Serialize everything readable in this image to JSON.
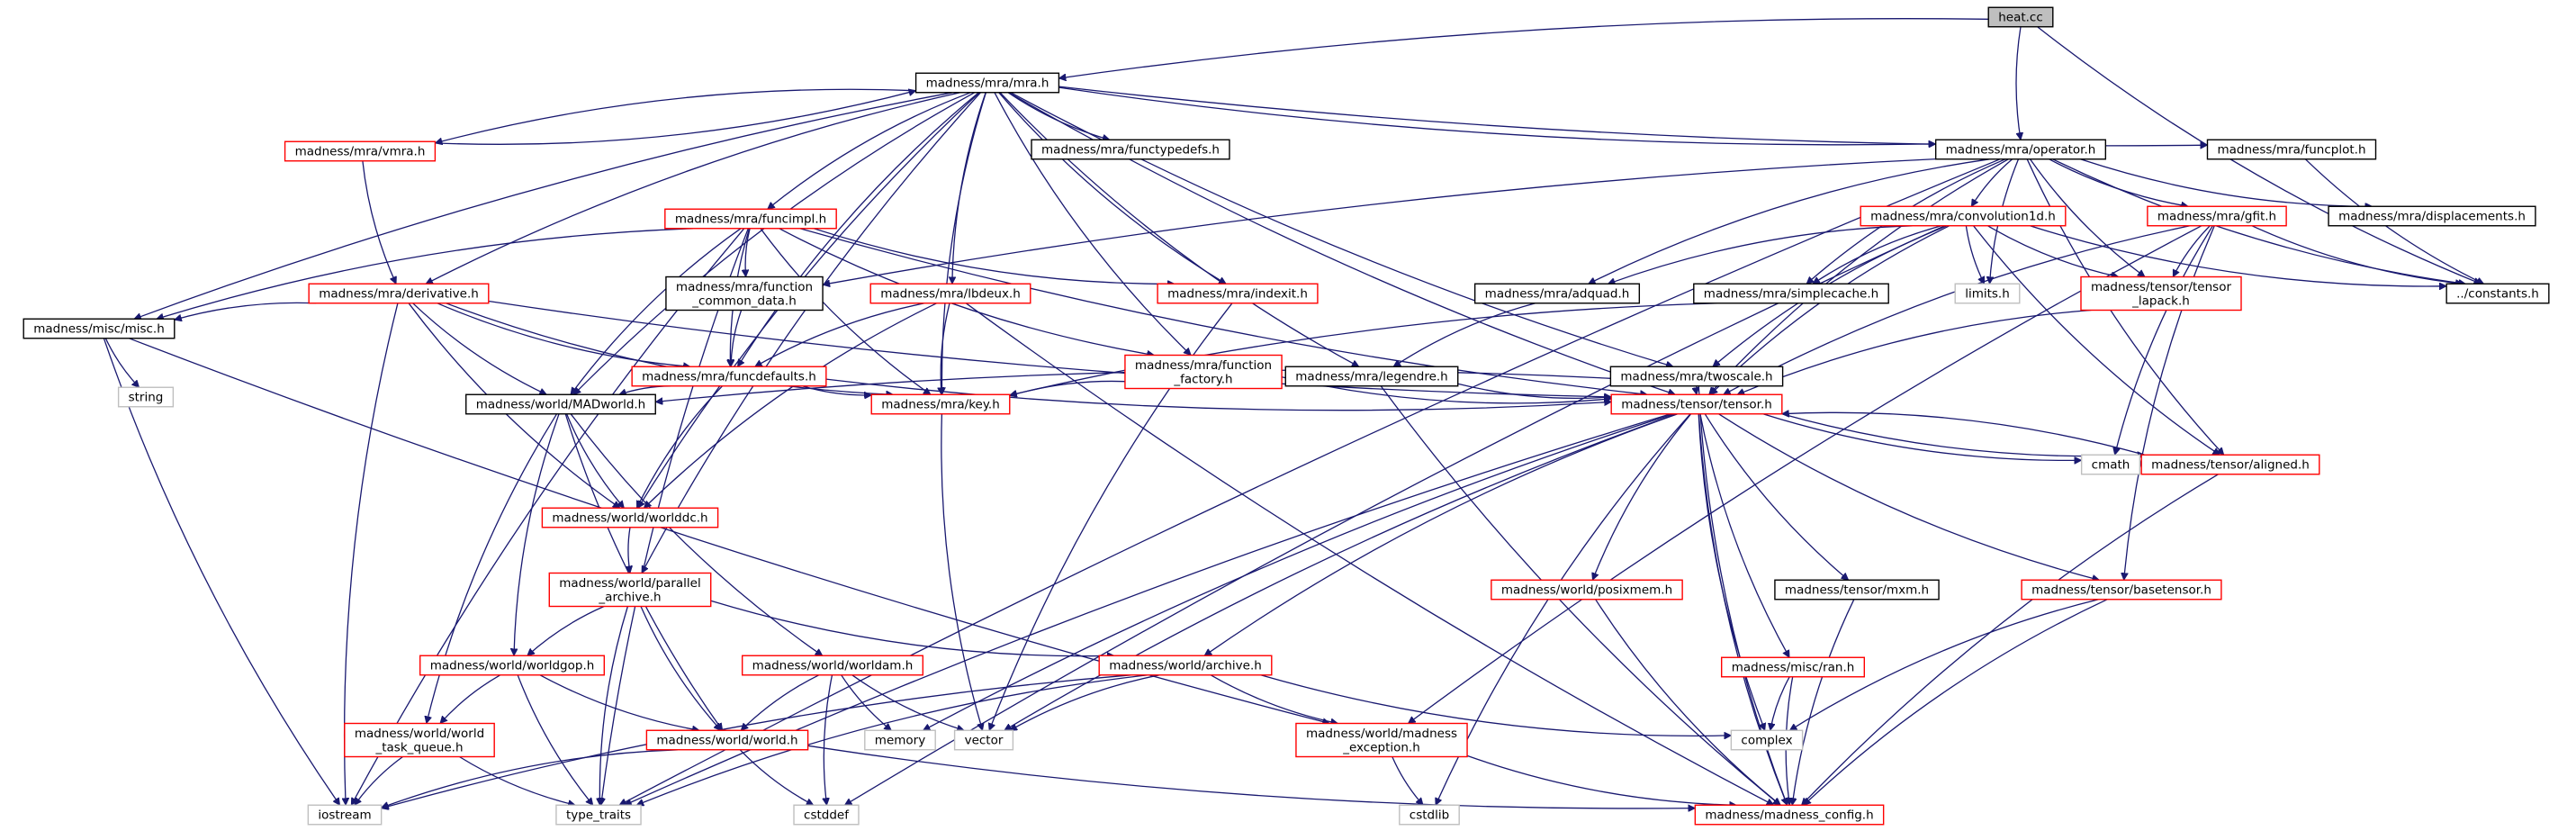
{
  "graph": {
    "nodes": [
      {
        "id": "heat",
        "lines": [
          "heat.cc"
        ],
        "kind": "root"
      },
      {
        "id": "mra",
        "lines": [
          "madness/mra/mra.h"
        ],
        "kind": "doc"
      },
      {
        "id": "vmra",
        "lines": [
          "madness/mra/vmra.h"
        ],
        "kind": "trunc"
      },
      {
        "id": "functypedefs",
        "lines": [
          "madness/mra/functypedefs.h"
        ],
        "kind": "doc"
      },
      {
        "id": "operator",
        "lines": [
          "madness/mra/operator.h"
        ],
        "kind": "doc"
      },
      {
        "id": "funcplot",
        "lines": [
          "madness/mra/funcplot.h"
        ],
        "kind": "doc"
      },
      {
        "id": "funcimpl",
        "lines": [
          "madness/mra/funcimpl.h"
        ],
        "kind": "trunc"
      },
      {
        "id": "convolution1d",
        "lines": [
          "madness/mra/convolution1d.h"
        ],
        "kind": "trunc"
      },
      {
        "id": "gfit",
        "lines": [
          "madness/mra/gfit.h"
        ],
        "kind": "trunc"
      },
      {
        "id": "displacements",
        "lines": [
          "madness/mra/displacements.h"
        ],
        "kind": "doc"
      },
      {
        "id": "derivative",
        "lines": [
          "madness/mra/derivative.h"
        ],
        "kind": "trunc"
      },
      {
        "id": "fcd",
        "lines": [
          "madness/mra/function",
          "_common_data.h"
        ],
        "kind": "doc"
      },
      {
        "id": "lbdeux",
        "lines": [
          "madness/mra/lbdeux.h"
        ],
        "kind": "trunc"
      },
      {
        "id": "indexit",
        "lines": [
          "madness/mra/indexit.h"
        ],
        "kind": "trunc"
      },
      {
        "id": "adquad",
        "lines": [
          "madness/mra/adquad.h"
        ],
        "kind": "doc"
      },
      {
        "id": "simplecache",
        "lines": [
          "madness/mra/simplecache.h"
        ],
        "kind": "doc"
      },
      {
        "id": "limits",
        "lines": [
          "limits.h"
        ],
        "kind": "sys"
      },
      {
        "id": "tlapack",
        "lines": [
          "madness/tensor/tensor",
          "_lapack.h"
        ],
        "kind": "trunc"
      },
      {
        "id": "constants",
        "lines": [
          "../constants.h"
        ],
        "kind": "doc"
      },
      {
        "id": "misc",
        "lines": [
          "madness/misc/misc.h"
        ],
        "kind": "doc"
      },
      {
        "id": "funcdefaults",
        "lines": [
          "madness/mra/funcdefaults.h"
        ],
        "kind": "trunc"
      },
      {
        "id": "ffactory",
        "lines": [
          "madness/mra/function",
          "_factory.h"
        ],
        "kind": "trunc"
      },
      {
        "id": "legendre",
        "lines": [
          "madness/mra/legendre.h"
        ],
        "kind": "doc"
      },
      {
        "id": "twoscale",
        "lines": [
          "madness/mra/twoscale.h"
        ],
        "kind": "doc"
      },
      {
        "id": "string",
        "lines": [
          "string"
        ],
        "kind": "sys"
      },
      {
        "id": "madworld",
        "lines": [
          "madness/world/MADworld.h"
        ],
        "kind": "doc"
      },
      {
        "id": "key",
        "lines": [
          "madness/mra/key.h"
        ],
        "kind": "trunc"
      },
      {
        "id": "tensor",
        "lines": [
          "madness/tensor/tensor.h"
        ],
        "kind": "trunc"
      },
      {
        "id": "cmath",
        "lines": [
          "cmath"
        ],
        "kind": "sys"
      },
      {
        "id": "aligned",
        "lines": [
          "madness/tensor/aligned.h"
        ],
        "kind": "trunc"
      },
      {
        "id": "worlddc",
        "lines": [
          "madness/world/worlddc.h"
        ],
        "kind": "trunc"
      },
      {
        "id": "parchive",
        "lines": [
          "madness/world/parallel",
          "_archive.h"
        ],
        "kind": "trunc"
      },
      {
        "id": "posixmem",
        "lines": [
          "madness/world/posixmem.h"
        ],
        "kind": "trunc"
      },
      {
        "id": "mxm",
        "lines": [
          "madness/tensor/mxm.h"
        ],
        "kind": "doc"
      },
      {
        "id": "basetensor",
        "lines": [
          "madness/tensor/basetensor.h"
        ],
        "kind": "trunc"
      },
      {
        "id": "worldgop",
        "lines": [
          "madness/world/worldgop.h"
        ],
        "kind": "trunc"
      },
      {
        "id": "worldam",
        "lines": [
          "madness/world/worldam.h"
        ],
        "kind": "trunc"
      },
      {
        "id": "archive",
        "lines": [
          "madness/world/archive.h"
        ],
        "kind": "trunc"
      },
      {
        "id": "ran",
        "lines": [
          "madness/misc/ran.h"
        ],
        "kind": "trunc"
      },
      {
        "id": "wtq",
        "lines": [
          "madness/world/world",
          "_task_queue.h"
        ],
        "kind": "trunc"
      },
      {
        "id": "world",
        "lines": [
          "madness/world/world.h"
        ],
        "kind": "trunc"
      },
      {
        "id": "memory",
        "lines": [
          "memory"
        ],
        "kind": "sys"
      },
      {
        "id": "vector",
        "lines": [
          "vector"
        ],
        "kind": "sys"
      },
      {
        "id": "mexc",
        "lines": [
          "madness/world/madness",
          "_exception.h"
        ],
        "kind": "trunc"
      },
      {
        "id": "complex",
        "lines": [
          "complex"
        ],
        "kind": "sys"
      },
      {
        "id": "iostream",
        "lines": [
          "iostream"
        ],
        "kind": "sys"
      },
      {
        "id": "typetraits",
        "lines": [
          "type_traits"
        ],
        "kind": "sys"
      },
      {
        "id": "cstddef",
        "lines": [
          "cstddef"
        ],
        "kind": "sys"
      },
      {
        "id": "cstdlib",
        "lines": [
          "cstdlib"
        ],
        "kind": "sys"
      },
      {
        "id": "mconfig",
        "lines": [
          "madness/madness_config.h"
        ],
        "kind": "trunc"
      }
    ],
    "edges": [
      [
        "heat",
        "mra"
      ],
      [
        "heat",
        "operator"
      ],
      [
        "heat",
        "constants"
      ],
      [
        "mra",
        "vmra"
      ],
      [
        "mra",
        "functypedefs"
      ],
      [
        "mra",
        "operator"
      ],
      [
        "mra",
        "funcplot"
      ],
      [
        "mra",
        "funcimpl"
      ],
      [
        "mra",
        "derivative"
      ],
      [
        "mra",
        "lbdeux"
      ],
      [
        "mra",
        "indexit"
      ],
      [
        "mra",
        "misc"
      ],
      [
        "mra",
        "funcdefaults"
      ],
      [
        "mra",
        "ffactory"
      ],
      [
        "mra",
        "legendre"
      ],
      [
        "mra",
        "twoscale"
      ],
      [
        "mra",
        "madworld"
      ],
      [
        "mra",
        "key"
      ],
      [
        "mra",
        "tensor"
      ],
      [
        "mra",
        "worlddc"
      ],
      [
        "mra",
        "parchive"
      ],
      [
        "vmra",
        "mra"
      ],
      [
        "vmra",
        "derivative"
      ],
      [
        "funcplot",
        "constants"
      ],
      [
        "operator",
        "fcd"
      ],
      [
        "operator",
        "convolution1d"
      ],
      [
        "operator",
        "gfit"
      ],
      [
        "operator",
        "displacements"
      ],
      [
        "operator",
        "adquad"
      ],
      [
        "operator",
        "simplecache"
      ],
      [
        "operator",
        "limits"
      ],
      [
        "operator",
        "tlapack"
      ],
      [
        "operator",
        "constants"
      ],
      [
        "operator",
        "aligned"
      ],
      [
        "operator",
        "typetraits"
      ],
      [
        "operator",
        "tensor"
      ],
      [
        "funcimpl",
        "fcd"
      ],
      [
        "funcimpl",
        "funcdefaults"
      ],
      [
        "funcimpl",
        "ffactory"
      ],
      [
        "funcimpl",
        "indexit"
      ],
      [
        "funcimpl",
        "misc"
      ],
      [
        "funcimpl",
        "madworld"
      ],
      [
        "funcimpl",
        "key"
      ],
      [
        "funcimpl",
        "tensor"
      ],
      [
        "funcimpl",
        "iostream"
      ],
      [
        "funcimpl",
        "typetraits"
      ],
      [
        "convolution1d",
        "adquad"
      ],
      [
        "convolution1d",
        "simplecache"
      ],
      [
        "convolution1d",
        "limits"
      ],
      [
        "convolution1d",
        "tlapack"
      ],
      [
        "convolution1d",
        "constants"
      ],
      [
        "convolution1d",
        "twoscale"
      ],
      [
        "convolution1d",
        "tensor"
      ],
      [
        "convolution1d",
        "aligned"
      ],
      [
        "convolution1d",
        "cstddef"
      ],
      [
        "gfit",
        "tlapack"
      ],
      [
        "gfit",
        "constants"
      ],
      [
        "gfit",
        "tensor"
      ],
      [
        "gfit",
        "cmath"
      ],
      [
        "gfit",
        "mexc"
      ],
      [
        "gfit",
        "basetensor"
      ],
      [
        "derivative",
        "misc"
      ],
      [
        "derivative",
        "funcdefaults"
      ],
      [
        "derivative",
        "madworld"
      ],
      [
        "derivative",
        "key"
      ],
      [
        "derivative",
        "worlddc"
      ],
      [
        "derivative",
        "tensor"
      ],
      [
        "derivative",
        "iostream"
      ],
      [
        "fcd",
        "funcdefaults"
      ],
      [
        "lbdeux",
        "funcdefaults"
      ],
      [
        "lbdeux",
        "key"
      ],
      [
        "lbdeux",
        "worlddc"
      ],
      [
        "lbdeux",
        "mconfig"
      ],
      [
        "indexit",
        "vector"
      ],
      [
        "adquad",
        "legendre"
      ],
      [
        "simplecache",
        "key"
      ],
      [
        "tlapack",
        "tensor"
      ],
      [
        "misc",
        "string"
      ],
      [
        "misc",
        "iostream"
      ],
      [
        "misc",
        "mexc"
      ],
      [
        "funcdefaults",
        "madworld"
      ],
      [
        "funcdefaults",
        "tensor"
      ],
      [
        "funcdefaults",
        "key"
      ],
      [
        "funcdefaults",
        "worlddc"
      ],
      [
        "ffactory",
        "key"
      ],
      [
        "ffactory",
        "tensor"
      ],
      [
        "legendre",
        "tensor"
      ],
      [
        "legendre",
        "mconfig"
      ],
      [
        "twoscale",
        "tensor"
      ],
      [
        "twoscale",
        "madworld"
      ],
      [
        "twoscale",
        "mconfig"
      ],
      [
        "madworld",
        "worlddc"
      ],
      [
        "madworld",
        "worldgop"
      ],
      [
        "madworld",
        "worldam"
      ],
      [
        "madworld",
        "world"
      ],
      [
        "madworld",
        "wtq"
      ],
      [
        "key",
        "vector"
      ],
      [
        "tensor",
        "cmath"
      ],
      [
        "tensor",
        "aligned"
      ],
      [
        "tensor",
        "posixmem"
      ],
      [
        "tensor",
        "mxm"
      ],
      [
        "tensor",
        "basetensor"
      ],
      [
        "tensor",
        "archive"
      ],
      [
        "tensor",
        "ran"
      ],
      [
        "tensor",
        "memory"
      ],
      [
        "tensor",
        "vector"
      ],
      [
        "tensor",
        "complex"
      ],
      [
        "tensor",
        "mconfig"
      ],
      [
        "tensor",
        "typetraits"
      ],
      [
        "tensor",
        "cstdlib"
      ],
      [
        "aligned",
        "tensor"
      ],
      [
        "aligned",
        "mconfig"
      ],
      [
        "worlddc",
        "parchive"
      ],
      [
        "parchive",
        "worldgop"
      ],
      [
        "parchive",
        "archive"
      ],
      [
        "parchive",
        "world"
      ],
      [
        "parchive",
        "typetraits"
      ],
      [
        "posixmem",
        "mconfig"
      ],
      [
        "mxm",
        "mconfig"
      ],
      [
        "basetensor",
        "complex"
      ],
      [
        "basetensor",
        "mconfig"
      ],
      [
        "worldgop",
        "wtq"
      ],
      [
        "worldgop",
        "world"
      ],
      [
        "worldgop",
        "typetraits"
      ],
      [
        "worldam",
        "world"
      ],
      [
        "worldam",
        "memory"
      ],
      [
        "worldam",
        "vector"
      ],
      [
        "worldam",
        "cstddef"
      ],
      [
        "archive",
        "vector"
      ],
      [
        "archive",
        "complex"
      ],
      [
        "archive",
        "mexc"
      ],
      [
        "archive",
        "iostream"
      ],
      [
        "archive",
        "typetraits"
      ],
      [
        "ran",
        "complex"
      ],
      [
        "ran",
        "mconfig"
      ],
      [
        "wtq",
        "iostream"
      ],
      [
        "wtq",
        "typetraits"
      ],
      [
        "world",
        "iostream"
      ],
      [
        "world",
        "cstddef"
      ],
      [
        "world",
        "mconfig"
      ],
      [
        "mexc",
        "cstdlib"
      ],
      [
        "mexc",
        "mconfig"
      ]
    ]
  },
  "colors": {
    "edge": "#191970",
    "root_fill": "#bfbfbf",
    "doc_border": "#000000",
    "truncated_border": "#ff0000",
    "system_border": "#bfbfbf",
    "text": "#000000"
  }
}
